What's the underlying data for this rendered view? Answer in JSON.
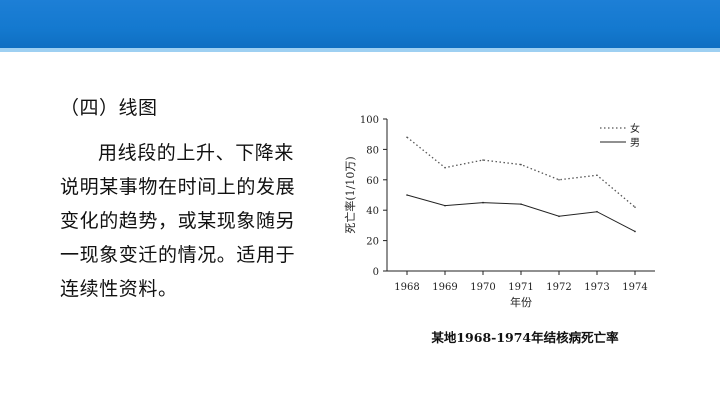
{
  "slide": {
    "heading": "（四）线图",
    "paragraph": "用线段的上升、下降来说明某事物在时间上的发展变化的趋势，或某现象随另一现象变迁的情况。适用于连续性资料。"
  },
  "chart_data": {
    "type": "line",
    "title": "某地1968-1974年结核病死亡率",
    "xlabel": "年份",
    "ylabel": "死亡率(1/10万)",
    "categories": [
      "1968",
      "1969",
      "1970",
      "1971",
      "1972",
      "1973",
      "1974"
    ],
    "ylim": [
      0,
      100
    ],
    "yticks": [
      0,
      20,
      40,
      60,
      80,
      100
    ],
    "grid": false,
    "legend_position": "top-right",
    "series": [
      {
        "name": "女",
        "style": "dotted",
        "color": "#555555",
        "values": [
          88,
          68,
          73,
          70,
          60,
          63,
          42
        ]
      },
      {
        "name": "男",
        "style": "solid",
        "color": "#222222",
        "values": [
          50,
          43,
          45,
          44,
          36,
          39,
          26
        ]
      }
    ]
  }
}
